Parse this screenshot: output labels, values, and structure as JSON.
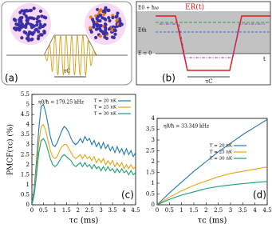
{
  "panel_a": {
    "label": "(a)",
    "tau": "τC"
  },
  "panel_b": {
    "label": "(b)",
    "tau": "τC",
    "level_top": "E0 + ħω",
    "level_th": "Eth",
    "level_zero": "E = 0",
    "curve": "ER(t)",
    "t": "t"
  },
  "chart_data": [
    {
      "type": "line",
      "label": "(c)",
      "annotation": "η0/ħ = 179.25 kHz",
      "xlabel": "τc (ms)",
      "ylabel": "PMCF(τc) (%)",
      "legend": "upper right",
      "x": [
        0,
        0.1,
        0.2,
        0.3,
        0.4,
        0.5,
        0.6,
        0.7,
        0.8,
        0.9,
        1.0,
        1.1,
        1.2,
        1.3,
        1.4,
        1.5,
        1.6,
        1.7,
        1.8,
        1.9,
        2.0,
        2.1,
        2.2,
        2.3,
        2.4,
        2.5,
        2.6,
        2.7,
        2.8,
        2.9,
        3.0,
        3.1,
        3.2,
        3.3,
        3.4,
        3.5,
        3.6,
        3.7,
        3.8,
        3.9,
        4.0,
        4.1,
        4.2,
        4.3,
        4.4,
        4.5
      ],
      "series": [
        {
          "name": "T = 20 nK",
          "color": "#1f77b4",
          "values": [
            0,
            0.8,
            2.2,
            3.8,
            4.9,
            5.0,
            4.6,
            4.0,
            3.4,
            3.0,
            2.9,
            3.1,
            3.4,
            3.7,
            3.9,
            3.8,
            3.6,
            3.3,
            3.1,
            3.0,
            3.1,
            3.3,
            3.1,
            3.4,
            3.2,
            3.3,
            3.0,
            3.2,
            2.9,
            3.1,
            2.8,
            3.1,
            2.8,
            3.0,
            2.7,
            2.9,
            2.6,
            2.9,
            2.6,
            2.8,
            2.5,
            2.8,
            2.5,
            2.7,
            2.4,
            2.6
          ]
        },
        {
          "name": "T = 25 nK",
          "color": "#e8a317",
          "values": [
            0,
            0.6,
            1.8,
            3.1,
            3.9,
            4.0,
            3.7,
            3.2,
            2.7,
            2.4,
            2.3,
            2.4,
            2.7,
            2.9,
            3.0,
            3.0,
            2.8,
            2.6,
            2.4,
            2.3,
            2.4,
            2.5,
            2.3,
            2.5,
            2.3,
            2.4,
            2.2,
            2.4,
            2.1,
            2.3,
            2.1,
            2.3,
            2.0,
            2.2,
            2.0,
            2.2,
            1.9,
            2.1,
            1.9,
            2.1,
            1.8,
            2.0,
            1.8,
            2.0,
            1.8,
            1.9
          ]
        },
        {
          "name": "T = 30 nK",
          "color": "#1a9e77",
          "values": [
            0,
            0.5,
            1.5,
            2.6,
            3.2,
            3.3,
            3.1,
            2.7,
            2.3,
            2.0,
            1.9,
            2.0,
            2.2,
            2.4,
            2.5,
            2.4,
            2.3,
            2.2,
            2.0,
            1.9,
            2.0,
            2.1,
            1.9,
            2.1,
            1.9,
            2.0,
            1.8,
            2.0,
            1.8,
            1.9,
            1.7,
            1.9,
            1.7,
            1.9,
            1.7,
            1.8,
            1.6,
            1.8,
            1.6,
            1.8,
            1.6,
            1.7,
            1.5,
            1.7,
            1.5,
            1.6
          ]
        }
      ],
      "xlim": [
        0,
        4.5
      ],
      "xticks": [
        0,
        0.5,
        1,
        1.5,
        2,
        2.5,
        3,
        3.5,
        4,
        4.5
      ],
      "ylim": [
        0,
        5.5
      ],
      "yticks": [
        0,
        0.5,
        1,
        1.5,
        2,
        2.5,
        3,
        3.5,
        4,
        4.5,
        5,
        5.5
      ]
    },
    {
      "type": "line",
      "label": "(d)",
      "annotation": "η0/ħ = 33.349 kHz",
      "xlabel": "τc (ms)",
      "legend": "center right",
      "x": [
        0,
        0.5,
        1,
        1.5,
        2,
        2.5,
        3,
        3.5,
        4,
        4.5
      ],
      "series": [
        {
          "name": "T = 20 nK",
          "color": "#1f77b4",
          "values": [
            0,
            0.55,
            1.05,
            1.55,
            2.0,
            2.45,
            2.85,
            3.25,
            3.6,
            3.95
          ]
        },
        {
          "name": "T = 25 nK",
          "color": "#e8a317",
          "values": [
            0,
            0.35,
            0.65,
            0.9,
            1.1,
            1.3,
            1.45,
            1.55,
            1.65,
            1.75
          ]
        },
        {
          "name": "T = 30 nK",
          "color": "#1a9e77",
          "values": [
            0,
            0.25,
            0.45,
            0.6,
            0.75,
            0.85,
            0.92,
            0.98,
            1.03,
            1.08
          ]
        }
      ],
      "xlim": [
        0,
        4.5
      ],
      "xticks": [
        0,
        0.5,
        1,
        1.5,
        2,
        2.5,
        3,
        3.5,
        4,
        4.5
      ],
      "ylim": [
        0,
        4
      ],
      "yticks": [
        0,
        0.5,
        1,
        1.5,
        2,
        2.5,
        3,
        3.5,
        4
      ]
    }
  ]
}
